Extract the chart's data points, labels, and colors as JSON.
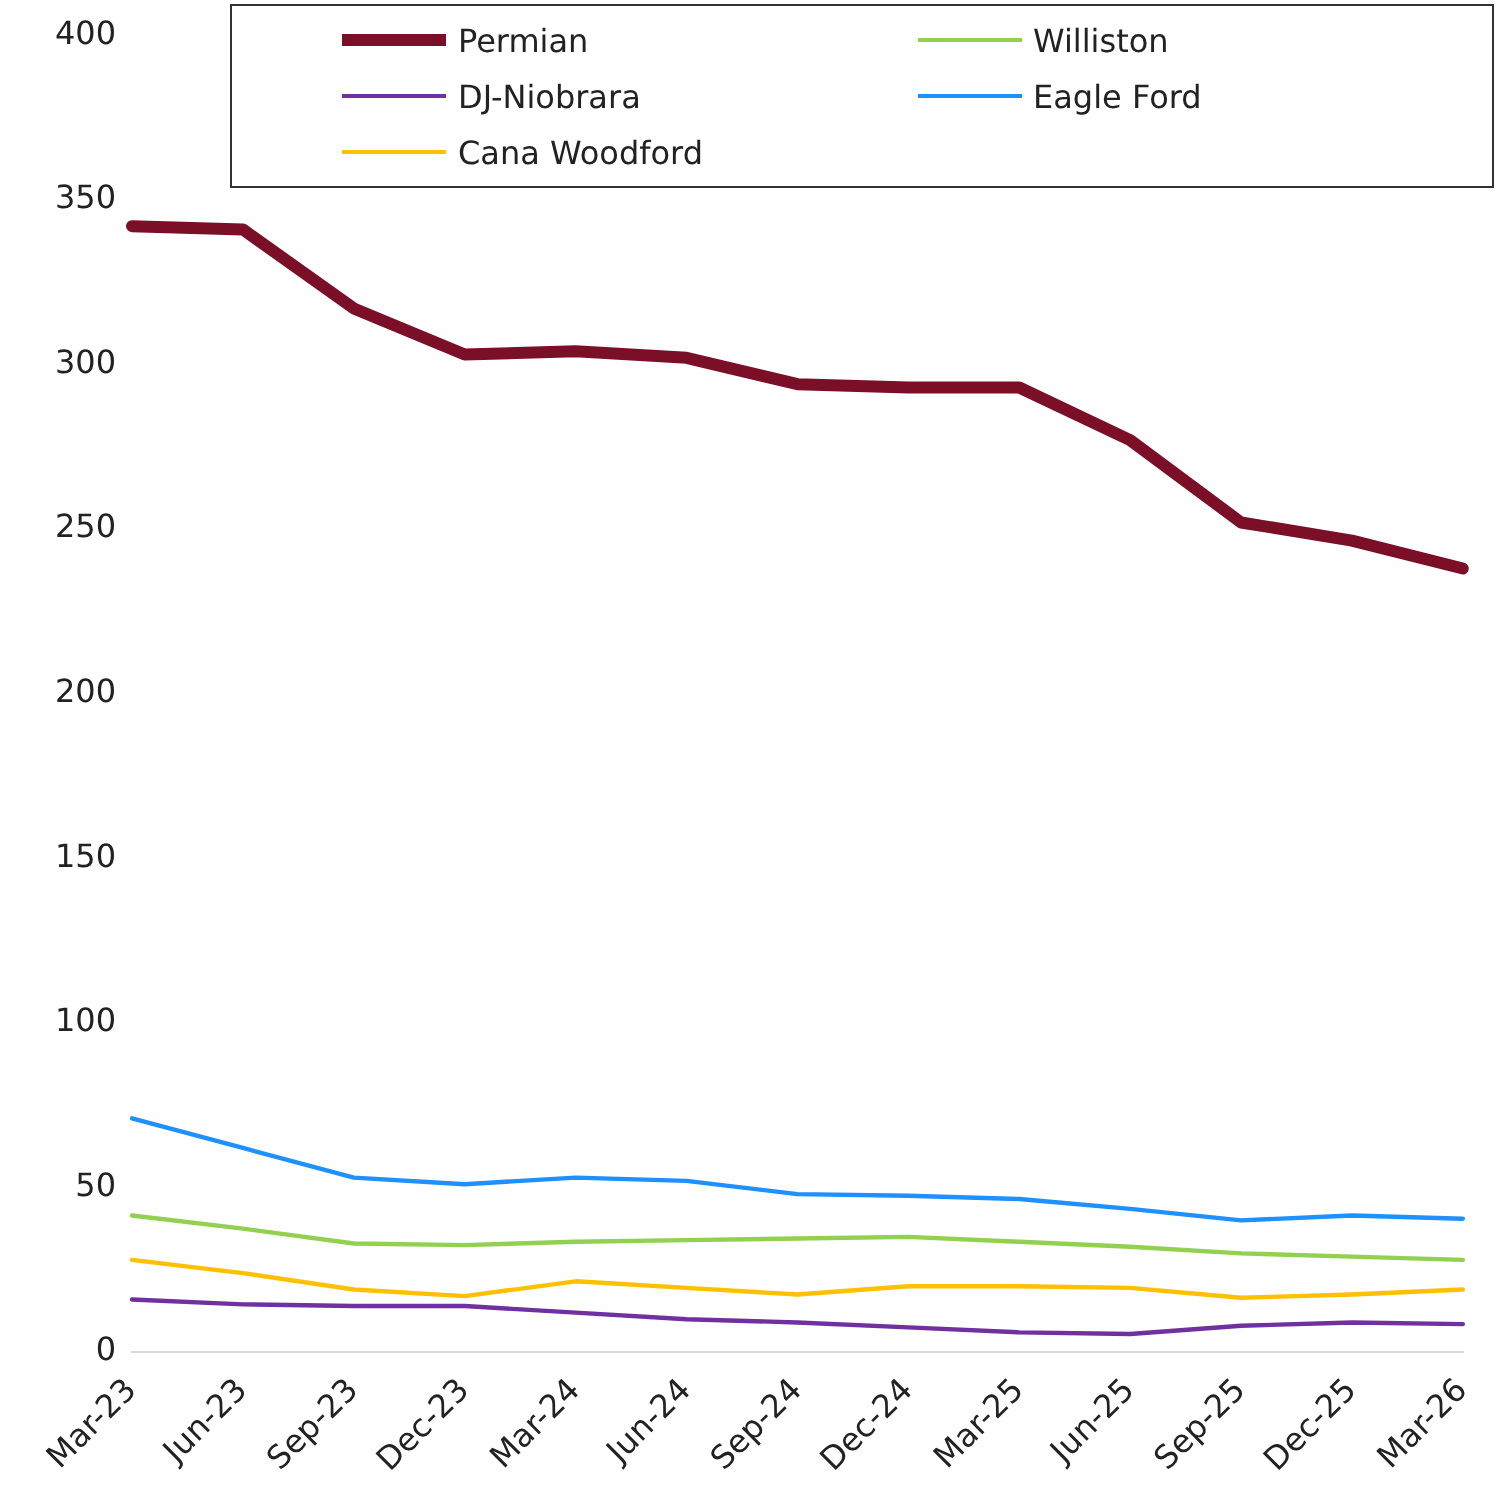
{
  "chart_data": {
    "type": "line",
    "categories": [
      "Mar-23",
      "Jun-23",
      "Sep-23",
      "Dec-23",
      "Mar-24",
      "Jun-24",
      "Sep-24",
      "Dec-24",
      "Mar-25",
      "Jun-25",
      "Sep-25",
      "Dec-25",
      "Mar-26"
    ],
    "series": [
      {
        "name": "Permian",
        "color": "#7b0f28",
        "values": [
          342,
          341,
          317,
          303,
          304,
          302,
          294,
          293,
          293,
          277,
          252,
          246.5,
          238
        ]
      },
      {
        "name": "Williston",
        "color": "#92d050",
        "values": [
          41.5,
          37.5,
          33,
          32.5,
          33.5,
          34,
          34.5,
          35,
          33.5,
          32,
          30,
          29,
          28
        ]
      },
      {
        "name": "DJ-Niobrara",
        "color": "#7030a0",
        "values": [
          16,
          14.5,
          14,
          14,
          12,
          10,
          9,
          7.5,
          6,
          5.5,
          8,
          9,
          8.5
        ]
      },
      {
        "name": "Eagle Ford",
        "color": "#1e90ff",
        "values": [
          71,
          62,
          53,
          51,
          53,
          52,
          48,
          47.5,
          46.5,
          43.5,
          40,
          41.5,
          40.5
        ]
      },
      {
        "name": "Cana Woodford",
        "color": "#ffc000",
        "values": [
          28,
          24,
          19,
          17,
          21.5,
          19.5,
          17.5,
          20,
          20,
          19.5,
          16.5,
          17.5,
          19
        ]
      }
    ],
    "ylim": [
      0,
      400
    ],
    "yticks": [
      0,
      50,
      100,
      150,
      200,
      250,
      300,
      350,
      400
    ],
    "grid": false,
    "legend": "top",
    "marker": "none",
    "line_style": "solid"
  }
}
